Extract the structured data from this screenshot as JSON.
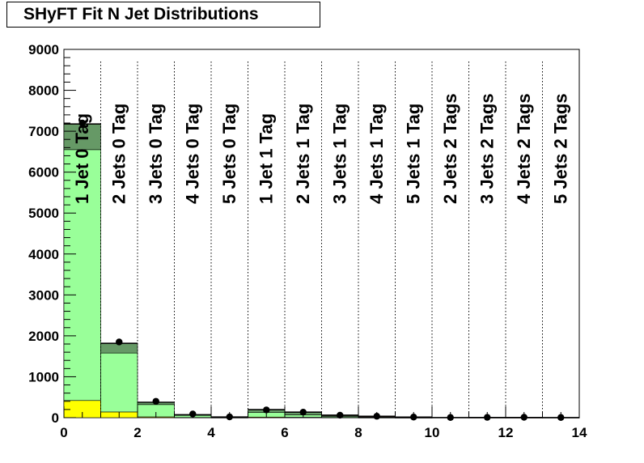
{
  "title": "SHyFT Fit N Jet Distributions",
  "chart_data": {
    "type": "bar",
    "stacked": true,
    "title": "SHyFT Fit N Jet Distributions",
    "xlabel": "",
    "ylabel": "",
    "xlim": [
      0,
      14
    ],
    "ylim": [
      0,
      9000
    ],
    "x_ticks": [
      "0",
      "2",
      "4",
      "6",
      "8",
      "10",
      "12",
      "14"
    ],
    "y_ticks": [
      "0",
      "1000",
      "2000",
      "3000",
      "4000",
      "5000",
      "6000",
      "7000",
      "8000",
      "9000"
    ],
    "categories": [
      "1 Jet  0 Tag",
      "2 Jets 0 Tag",
      "3 Jets 0 Tag",
      "4 Jets 0 Tag",
      "5 Jets 0 Tag",
      "1 Jet  1 Tag",
      "2 Jets 1 Tag",
      "3 Jets 1 Tag",
      "4 Jets 1 Tag",
      "5 Jets 1 Tag",
      "2 Jets 2 Tags",
      "3 Jets 2 Tags",
      "4 Jets 2 Tags",
      "5 Jets 2 Tags"
    ],
    "series": [
      {
        "color": "#ffff00",
        "values": [
          420,
          140,
          20,
          5,
          2,
          15,
          10,
          5,
          2,
          1,
          0,
          0,
          0,
          0
        ]
      },
      {
        "color": "#99ff99",
        "values": [
          6130,
          1440,
          300,
          50,
          12,
          110,
          60,
          20,
          6,
          2,
          0,
          1,
          1,
          0
        ]
      },
      {
        "color": "#669966",
        "values": [
          620,
          230,
          50,
          15,
          4,
          65,
          55,
          25,
          10,
          3,
          2,
          3,
          2,
          1
        ]
      },
      {
        "color": "#993300",
        "values": [
          10,
          10,
          10,
          5,
          2,
          10,
          15,
          15,
          15,
          8,
          3,
          3,
          5,
          3
        ]
      },
      {
        "color": "#cc0000",
        "values": [
          0,
          0,
          0,
          0,
          0,
          0,
          0,
          0,
          5,
          3,
          1,
          1,
          1,
          1
        ]
      }
    ],
    "data_points": [
      {
        "x": 0.5,
        "y": 7200
      },
      {
        "x": 1.5,
        "y": 1850
      },
      {
        "x": 2.5,
        "y": 400
      },
      {
        "x": 3.5,
        "y": 90
      },
      {
        "x": 4.5,
        "y": 20
      },
      {
        "x": 5.5,
        "y": 190
      },
      {
        "x": 6.5,
        "y": 135
      },
      {
        "x": 7.5,
        "y": 60
      },
      {
        "x": 8.5,
        "y": 35
      },
      {
        "x": 9.5,
        "y": 15
      },
      {
        "x": 10.5,
        "y": 5
      },
      {
        "x": 11.5,
        "y": 8
      },
      {
        "x": 12.5,
        "y": 10
      },
      {
        "x": 13.5,
        "y": 5
      }
    ],
    "grid": false,
    "legend": false
  }
}
